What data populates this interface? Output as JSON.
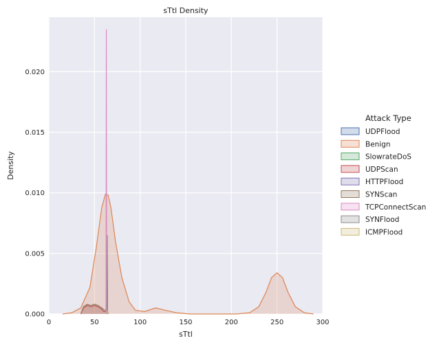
{
  "chart_data": {
    "type": "area",
    "title": "sTtl Density",
    "xlabel": "sTtl",
    "ylabel": "Density",
    "xlim": [
      0,
      300
    ],
    "ylim": [
      0,
      0.0245
    ],
    "xticks": [
      0,
      50,
      100,
      150,
      200,
      250,
      300
    ],
    "yticks": [
      0.0,
      0.005,
      0.01,
      0.015,
      0.02
    ],
    "ytick_labels": [
      "0.000",
      "0.005",
      "0.010",
      "0.015",
      "0.020"
    ],
    "grid": true,
    "legend": {
      "title": "Attack Type",
      "placement": "right"
    },
    "series": [
      {
        "name": "UDPFlood",
        "color": "#4c72b0",
        "x": [
          62.8,
          63.0,
          63.2
        ],
        "y": [
          0,
          0.0004,
          0
        ]
      },
      {
        "name": "Benign",
        "color": "#dd8452",
        "x": [
          15,
          25,
          35,
          45,
          52,
          58,
          62,
          65,
          68,
          73,
          80,
          88,
          95,
          105,
          117,
          128,
          140,
          155,
          170,
          190,
          205,
          220,
          230,
          238,
          244,
          250,
          256,
          262,
          270,
          280,
          290
        ],
        "y": [
          0.0,
          0.0001,
          0.0005,
          0.0022,
          0.0055,
          0.0088,
          0.0099,
          0.0098,
          0.0088,
          0.006,
          0.003,
          0.001,
          0.0003,
          0.0002,
          0.0005,
          0.0003,
          0.0001,
          0.0,
          0.0,
          0.0,
          0.0,
          0.0001,
          0.0006,
          0.0018,
          0.003,
          0.0034,
          0.003,
          0.0018,
          0.0006,
          0.0001,
          0.0
        ]
      },
      {
        "name": "SlowrateDoS",
        "color": "#55a868",
        "x": [
          63.5,
          64.0,
          64.5
        ],
        "y": [
          0,
          0.0006,
          0
        ]
      },
      {
        "name": "UDPScan",
        "color": "#c44e52",
        "x": [
          35,
          38,
          42,
          46,
          50,
          54,
          58,
          60,
          62,
          63,
          64,
          65
        ],
        "y": [
          0,
          0.0005,
          0.0007,
          0.0006,
          0.0007,
          0.0006,
          0.0004,
          0.0002,
          0.0002,
          0.0006,
          0.0002,
          0
        ]
      },
      {
        "name": "HTTPFlood",
        "color": "#8172b3",
        "x": [
          63.6,
          64.0,
          64.4
        ],
        "y": [
          0,
          0.004,
          0
        ]
      },
      {
        "name": "SYNScan",
        "color": "#937860",
        "x": [
          35,
          38,
          42,
          46,
          50,
          54,
          58,
          61,
          63,
          64,
          65
        ],
        "y": [
          0,
          0.0006,
          0.0008,
          0.0007,
          0.0008,
          0.0007,
          0.0005,
          0.0003,
          0.0002,
          0.0004,
          0
        ]
      },
      {
        "name": "TCPConnectScan",
        "color": "#da8bc3",
        "x": [
          62.6,
          63.0,
          63.4
        ],
        "y": [
          0,
          0.0235,
          0
        ]
      },
      {
        "name": "SYNFlood",
        "color": "#8c8c8c",
        "x": [
          63.6,
          64.0,
          64.4
        ],
        "y": [
          0,
          0.0065,
          0
        ]
      },
      {
        "name": "ICMPFlood",
        "color": "#ccb974",
        "x": [
          63.7,
          64.0,
          64.3
        ],
        "y": [
          0,
          0.0003,
          0
        ]
      }
    ]
  }
}
